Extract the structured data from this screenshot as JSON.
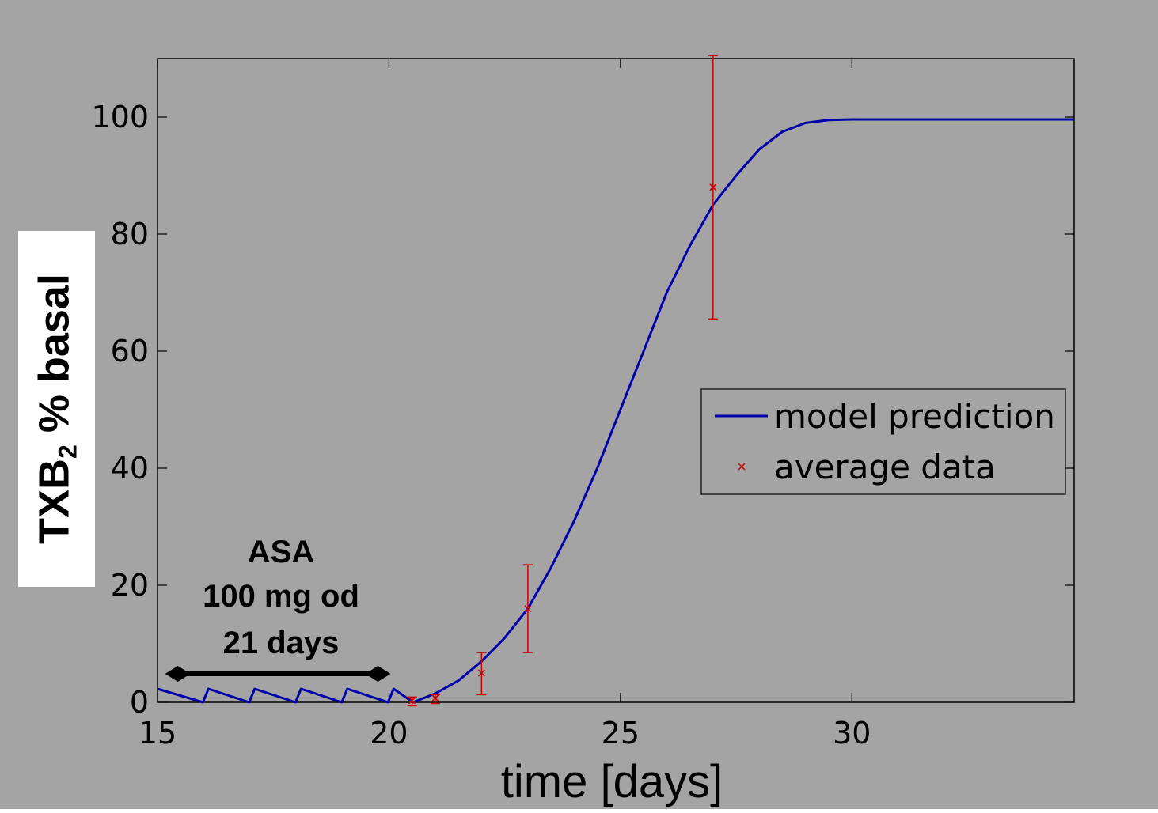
{
  "chart_data": {
    "type": "line",
    "xlabel": "time [days]",
    "ylabel": {
      "main": "TXB",
      "subscript": "2",
      "suffix": " % basal"
    },
    "xlim": [
      15,
      34.8
    ],
    "ylim": [
      0,
      110
    ],
    "xticks": [
      15,
      20,
      25,
      30
    ],
    "yticks": [
      0,
      20,
      40,
      60,
      80,
      100
    ],
    "grid": false,
    "legend_position": "right",
    "annotation": {
      "lines": [
        "ASA",
        "100 mg od",
        "21 days"
      ],
      "span": [
        15.2,
        20
      ]
    },
    "series": [
      {
        "name": "model prediction",
        "kind": "line",
        "color": "#0000aa",
        "dosing_phase": {
          "doses": [
            15,
            16,
            17,
            18,
            19,
            20
          ],
          "peak": 2.3,
          "trough": 0
        },
        "recovery_phase": {
          "x": [
            20.52,
            21,
            21.5,
            22,
            22.5,
            23,
            23.5,
            24,
            24.5,
            25,
            25.5,
            26,
            26.5,
            27,
            27.5,
            28,
            28.5,
            29,
            29.5,
            30,
            31,
            32,
            33,
            34.8
          ],
          "y": [
            0,
            1.5,
            3.7,
            7,
            11,
            16,
            23,
            31,
            40,
            50,
            60,
            70,
            78,
            85,
            90,
            94.5,
            97.5,
            99,
            99.5,
            99.6,
            99.6,
            99.6,
            99.6,
            99.6
          ]
        }
      },
      {
        "name": "average data",
        "kind": "errorbar",
        "color": "#cc0000",
        "x": [
          20.5,
          21,
          22,
          23,
          27
        ],
        "y": [
          0.3,
          0.7,
          5,
          16,
          88
        ],
        "err_low": [
          0.9,
          0.9,
          3.7,
          7.5,
          22.5
        ],
        "err_high": [
          0.6,
          0.6,
          3.5,
          7.5,
          22.5
        ]
      }
    ]
  },
  "colors": {
    "background": "#a4a4a4",
    "axes": "#000000",
    "model": "#0000aa",
    "data": "#cc0000"
  }
}
